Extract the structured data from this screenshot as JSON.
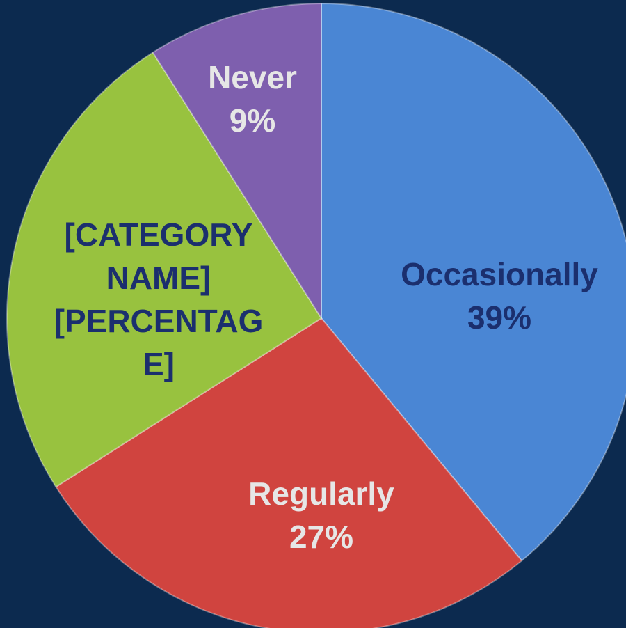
{
  "chart_data": {
    "type": "pie",
    "categories": [
      "Occasionally",
      "Regularly",
      "[CATEGORY NAME]",
      "Never"
    ],
    "values": [
      39,
      27,
      25,
      9
    ],
    "value_labels": [
      "39%",
      "27%",
      "[PERCENTAGE]",
      "9%"
    ],
    "colors": [
      "#4a86d4",
      "#d0443f",
      "#98c23f",
      "#7e5fae"
    ],
    "label_colors": [
      "#1b2f6e",
      "#e6e6e6",
      "#1b2f6e",
      "#e6e6e6"
    ]
  }
}
